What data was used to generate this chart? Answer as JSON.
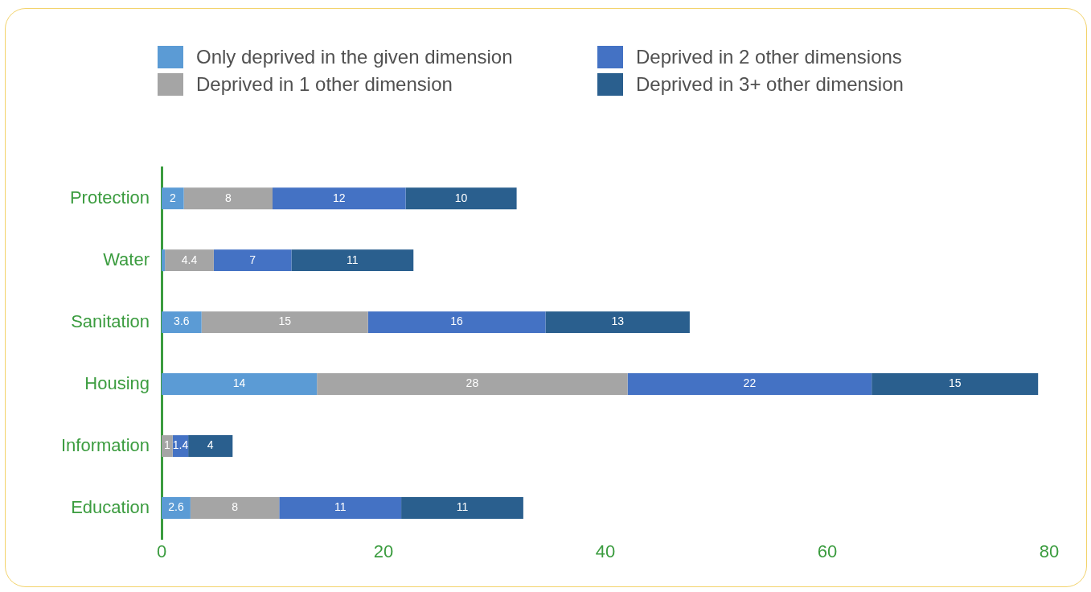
{
  "chart_data": {
    "type": "bar",
    "orientation": "horizontal",
    "stacked": true,
    "categories": [
      "Protection",
      "Water",
      "Sanitation",
      "Housing",
      "Information",
      "Education"
    ],
    "series": [
      {
        "name": "Only deprived in the given dimension",
        "color": "#5b9bd5",
        "values": [
          2,
          0.3,
          3.6,
          14,
          null,
          2.6
        ],
        "value_labels": [
          "2",
          null,
          "3.6",
          "14",
          null,
          "2.6"
        ]
      },
      {
        "name": "Deprived in 1 other dimension",
        "color": "#a5a5a5",
        "values": [
          8,
          4.4,
          15,
          28,
          1,
          8
        ],
        "value_labels": [
          "8",
          "4.4",
          "15",
          "28",
          "1",
          "8"
        ]
      },
      {
        "name": "Deprived in 2 other dimensions",
        "color": "#4472c4",
        "values": [
          12,
          7,
          16,
          22,
          1.4,
          11
        ],
        "value_labels": [
          "12",
          "7",
          "16",
          "22",
          "1.4",
          "11"
        ]
      },
      {
        "name": "Deprived in 3+ other dimension",
        "color": "#2a5f8e",
        "values": [
          10,
          11,
          13,
          15,
          4,
          11
        ],
        "value_labels": [
          "10",
          "11",
          "13",
          "15",
          "4",
          "11"
        ]
      }
    ],
    "xlim": [
      0,
      80
    ],
    "xticks": [
      0,
      20,
      40,
      60,
      80
    ],
    "grid": false,
    "legend": "top"
  }
}
